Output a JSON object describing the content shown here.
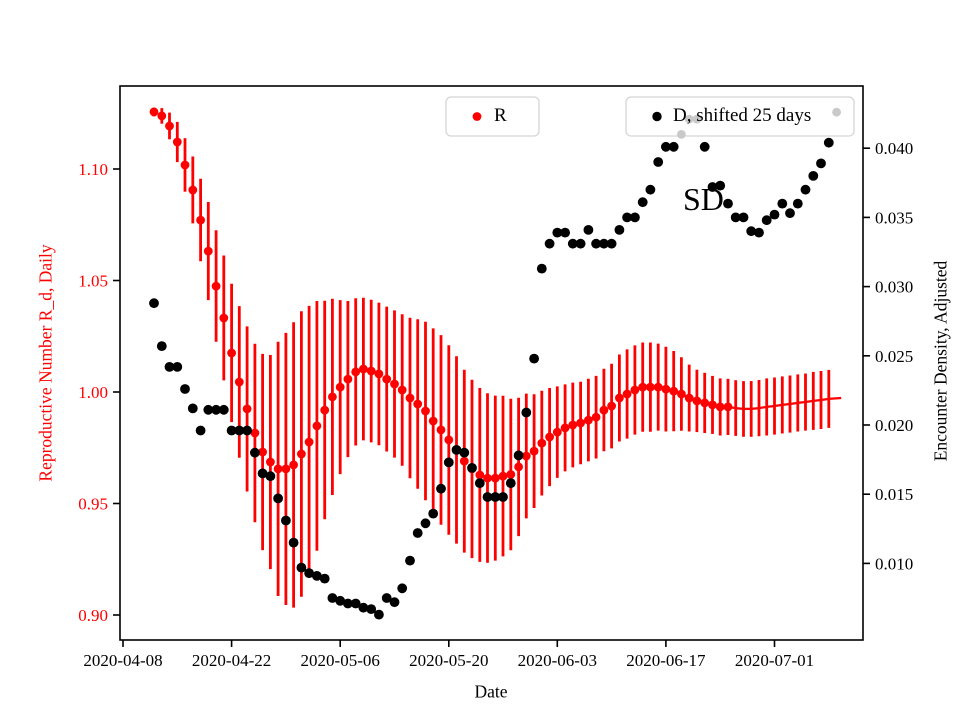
{
  "chart_data": {
    "type": "scatter",
    "xlabel": "Date",
    "x_tick_labels": [
      "2020-04-08",
      "2020-04-22",
      "2020-05-06",
      "2020-05-20",
      "2020-06-03",
      "2020-06-17",
      "2020-07-01"
    ],
    "y_left": {
      "label": "Reproductive Number R_d, Daily",
      "ticks": [
        1.1,
        1.05,
        1.0,
        0.95,
        0.9
      ],
      "color": "#ff0000",
      "range": [
        0.889,
        1.137
      ]
    },
    "y_right": {
      "label": "Encounter Density, Adjusted",
      "ticks": [
        0.04,
        0.035,
        0.03,
        0.025,
        0.02,
        0.015,
        0.01
      ],
      "color": "#000000",
      "range": [
        0.0045,
        0.0445
      ]
    },
    "legend": [
      {
        "label": "R",
        "color": "#ff0000"
      },
      {
        "label": "D, shifted 25 days",
        "color": "#000000"
      }
    ],
    "annotation": {
      "text": "SD",
      "x_date": "2020-06-20",
      "y_left_value": 1.082
    },
    "series": [
      {
        "name": "R",
        "axis": "left",
        "color": "#ff0000",
        "marker": "dot-with-errorbar",
        "start_date": "2020-04-12",
        "marker_until": "2020-06-25",
        "tail_line_from": "2020-06-18",
        "tail_extension": {
          "days_past_end": 1.6,
          "value": 0.9973
        },
        "values": [
          1.1256,
          1.1238,
          1.1193,
          1.1121,
          1.1018,
          1.0906,
          1.0771,
          1.0632,
          1.0475,
          1.0332,
          1.0175,
          1.0045,
          0.9924,
          0.9816,
          0.9731,
          0.9686,
          0.9655,
          0.9655,
          0.9673,
          0.9722,
          0.9776,
          0.9848,
          0.9919,
          0.9978,
          1.0022,
          1.0058,
          1.009,
          1.0103,
          1.0094,
          1.0081,
          1.0058,
          1.0036,
          1.0009,
          0.9973,
          0.9946,
          0.9915,
          0.987,
          0.983,
          0.9785,
          0.974,
          0.969,
          0.9655,
          0.9628,
          0.9614,
          0.9614,
          0.9623,
          0.963,
          0.9664,
          0.9713,
          0.9735,
          0.9771,
          0.9798,
          0.982,
          0.9839,
          0.9852,
          0.9861,
          0.9874,
          0.9887,
          0.9919,
          0.9937,
          0.9973,
          0.9991,
          1.0009,
          1.0022,
          1.0022,
          1.0022,
          1.0013,
          1.0004,
          0.9991,
          0.9973,
          0.996,
          0.9951,
          0.9942,
          0.9933,
          0.9933,
          0.9928,
          0.9924,
          0.9924,
          0.9928,
          0.9933,
          0.9937,
          0.9942,
          0.9946,
          0.9951,
          0.9955,
          0.996,
          0.9964,
          0.9969
        ],
        "yerr": [
          0.002,
          0.0035,
          0.006,
          0.009,
          0.012,
          0.015,
          0.0185,
          0.022,
          0.025,
          0.028,
          0.031,
          0.034,
          0.037,
          0.04,
          0.044,
          0.048,
          0.057,
          0.061,
          0.064,
          0.064,
          0.061,
          0.056,
          0.049,
          0.044,
          0.039,
          0.035,
          0.033,
          0.032,
          0.032,
          0.032,
          0.0325,
          0.033,
          0.034,
          0.036,
          0.038,
          0.04,
          0.0415,
          0.0425,
          0.0425,
          0.042,
          0.041,
          0.04,
          0.039,
          0.038,
          0.037,
          0.036,
          0.034,
          0.031,
          0.028,
          0.0255,
          0.0235,
          0.022,
          0.0205,
          0.0195,
          0.019,
          0.0185,
          0.0185,
          0.0185,
          0.0185,
          0.019,
          0.0195,
          0.02,
          0.02,
          0.02,
          0.02,
          0.0195,
          0.019,
          0.018,
          0.0165,
          0.015,
          0.014,
          0.0135,
          0.013,
          0.0128,
          0.0126,
          0.0125,
          0.0125,
          0.0125,
          0.0126,
          0.0128,
          0.0128,
          0.0128,
          0.0128,
          0.0128,
          0.0128,
          0.013,
          0.013,
          0.013
        ]
      },
      {
        "name": "D, shifted 25 days",
        "axis": "right",
        "color": "#000000",
        "marker": "dot",
        "start_date": "2020-04-12",
        "excluded_color": "#c9c9c9",
        "excluded_dates": [
          "2020-06-19",
          "2020-06-20",
          "2020-06-21",
          "2020-07-09"
        ],
        "values": [
          0.0288,
          0.0257,
          0.0242,
          0.0242,
          0.0226,
          0.0212,
          0.0196,
          0.0211,
          0.0211,
          0.0211,
          0.0196,
          0.0196,
          0.0196,
          0.018,
          0.0165,
          0.0163,
          0.0147,
          0.0131,
          0.0115,
          0.0097,
          0.0093,
          0.0091,
          0.0089,
          0.0075,
          0.0073,
          0.0071,
          0.0071,
          0.0068,
          0.0067,
          0.0063,
          0.0075,
          0.0072,
          0.0082,
          0.0102,
          0.0122,
          0.0129,
          0.0136,
          0.0154,
          0.0173,
          0.0182,
          0.018,
          0.0169,
          0.0158,
          0.0148,
          0.0148,
          0.0148,
          0.0158,
          0.0178,
          0.0209,
          0.0248,
          0.0313,
          0.0331,
          0.0339,
          0.0339,
          0.0331,
          0.0331,
          0.0341,
          0.0331,
          0.0331,
          0.0331,
          0.0341,
          0.035,
          0.035,
          0.0361,
          0.037,
          0.039,
          0.0401,
          0.0401,
          0.041,
          0.0421,
          0.0421,
          0.0401,
          0.0372,
          0.0373,
          0.036,
          0.035,
          0.035,
          0.034,
          0.0339,
          0.0348,
          0.0352,
          0.036,
          0.0353,
          0.036,
          0.037,
          0.038,
          0.0389,
          0.0404,
          0.0426
        ]
      }
    ]
  }
}
